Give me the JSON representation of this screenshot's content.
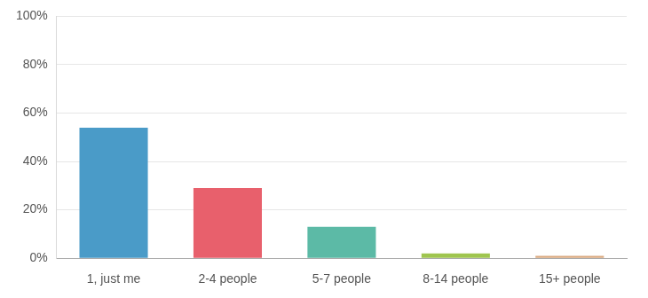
{
  "chart_data": {
    "type": "bar",
    "categories": [
      "1, just me",
      "2-4 people",
      "5-7 people",
      "8-14 people",
      "15+ people"
    ],
    "values": [
      54,
      29,
      13,
      2,
      1
    ],
    "colors": [
      "#4a9bc8",
      "#e8606c",
      "#5cbaa6",
      "#9fc54f",
      "#d9a87e"
    ],
    "ylim": [
      0,
      100
    ],
    "yticks": [
      {
        "value": 0,
        "label": "0%"
      },
      {
        "value": 20,
        "label": "20%"
      },
      {
        "value": 40,
        "label": "40%"
      },
      {
        "value": 60,
        "label": "60%"
      },
      {
        "value": 80,
        "label": "80%"
      },
      {
        "value": 100,
        "label": "100%"
      }
    ],
    "grid": true
  }
}
